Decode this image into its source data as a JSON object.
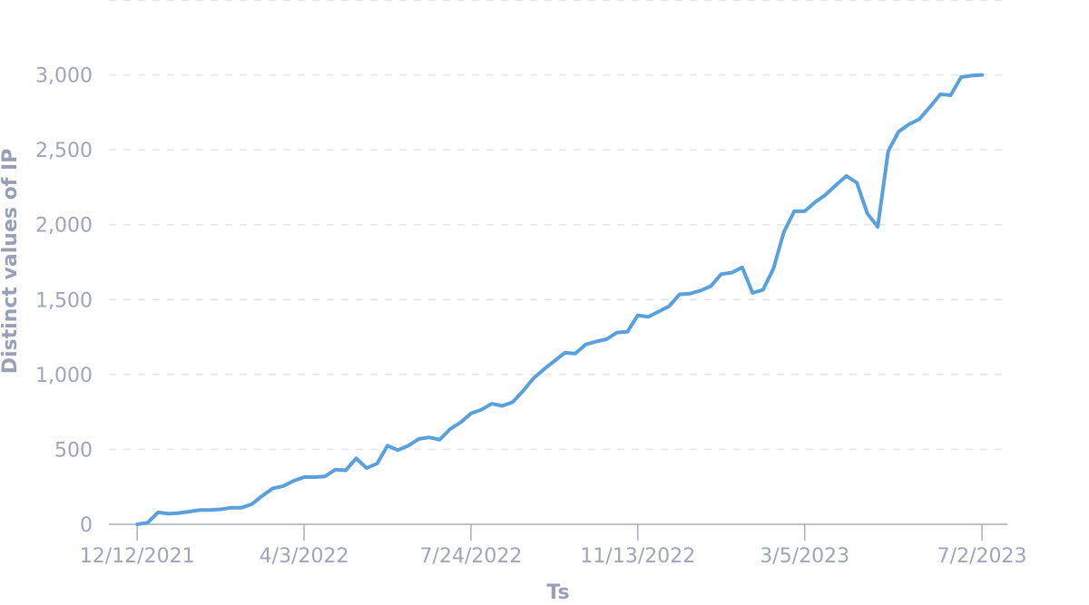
{
  "chart_data": {
    "type": "line",
    "title": "",
    "xlabel": "Ts",
    "ylabel": "Distinct values of IP",
    "x_tick_labels": [
      "12/12/2021",
      "4/3/2022",
      "7/24/2022",
      "11/13/2022",
      "3/5/2023",
      "7/2/2023"
    ],
    "y_tick_labels": [
      "0",
      "500",
      "1,000",
      "1,500",
      "2,000",
      "2,500",
      "3,000"
    ],
    "y_tick_values": [
      0,
      500,
      1000,
      1500,
      2000,
      2500,
      3000
    ],
    "ylim": [
      0,
      3500
    ],
    "xlim": [
      "2021-11-23",
      "2023-07-19"
    ],
    "grid": true,
    "legend": "none",
    "series": [
      {
        "color": "#5aa0dc",
        "x": [
          "2021-12-12",
          "2021-12-19",
          "2021-12-26",
          "2022-01-02",
          "2022-01-09",
          "2022-01-16",
          "2022-01-23",
          "2022-01-30",
          "2022-02-06",
          "2022-02-13",
          "2022-02-20",
          "2022-02-27",
          "2022-03-06",
          "2022-03-13",
          "2022-03-20",
          "2022-03-27",
          "2022-04-03",
          "2022-04-10",
          "2022-04-17",
          "2022-04-24",
          "2022-05-01",
          "2022-05-08",
          "2022-05-15",
          "2022-05-22",
          "2022-05-29",
          "2022-06-05",
          "2022-06-12",
          "2022-06-19",
          "2022-06-26",
          "2022-07-03",
          "2022-07-10",
          "2022-07-17",
          "2022-07-24",
          "2022-07-31",
          "2022-08-07",
          "2022-08-14",
          "2022-08-21",
          "2022-08-28",
          "2022-09-04",
          "2022-09-11",
          "2022-09-18",
          "2022-09-25",
          "2022-10-02",
          "2022-10-09",
          "2022-10-16",
          "2022-10-23",
          "2022-10-30",
          "2022-11-06",
          "2022-11-13",
          "2022-11-20",
          "2022-11-27",
          "2022-12-04",
          "2022-12-11",
          "2022-12-18",
          "2022-12-25",
          "2023-01-01",
          "2023-01-08",
          "2023-01-15",
          "2023-01-22",
          "2023-01-29",
          "2023-02-05",
          "2023-02-12",
          "2023-02-19",
          "2023-02-26",
          "2023-03-05",
          "2023-03-12",
          "2023-03-19",
          "2023-03-26",
          "2023-04-02",
          "2023-04-09",
          "2023-04-16",
          "2023-04-23",
          "2023-04-30",
          "2023-05-07",
          "2023-05-14",
          "2023-05-21",
          "2023-05-28",
          "2023-06-04",
          "2023-06-11",
          "2023-06-18",
          "2023-06-25",
          "2023-07-02"
        ],
        "values": [
          0,
          10,
          80,
          70,
          75,
          85,
          95,
          95,
          100,
          110,
          110,
          135,
          190,
          240,
          255,
          290,
          315,
          315,
          320,
          365,
          360,
          440,
          375,
          405,
          525,
          495,
          525,
          570,
          580,
          565,
          635,
          680,
          740,
          765,
          805,
          790,
          815,
          890,
          975,
          1035,
          1090,
          1145,
          1140,
          1200,
          1220,
          1235,
          1280,
          1285,
          1395,
          1385,
          1420,
          1455,
          1535,
          1540,
          1560,
          1590,
          1670,
          1680,
          1715,
          1545,
          1565,
          1705,
          1950,
          2090,
          2090,
          2150,
          2200,
          2265,
          2325,
          2280,
          2075,
          1985,
          2490,
          2620,
          2670,
          2705,
          2785,
          2870,
          2865,
          2985,
          2995,
          3000
        ]
      }
    ]
  }
}
